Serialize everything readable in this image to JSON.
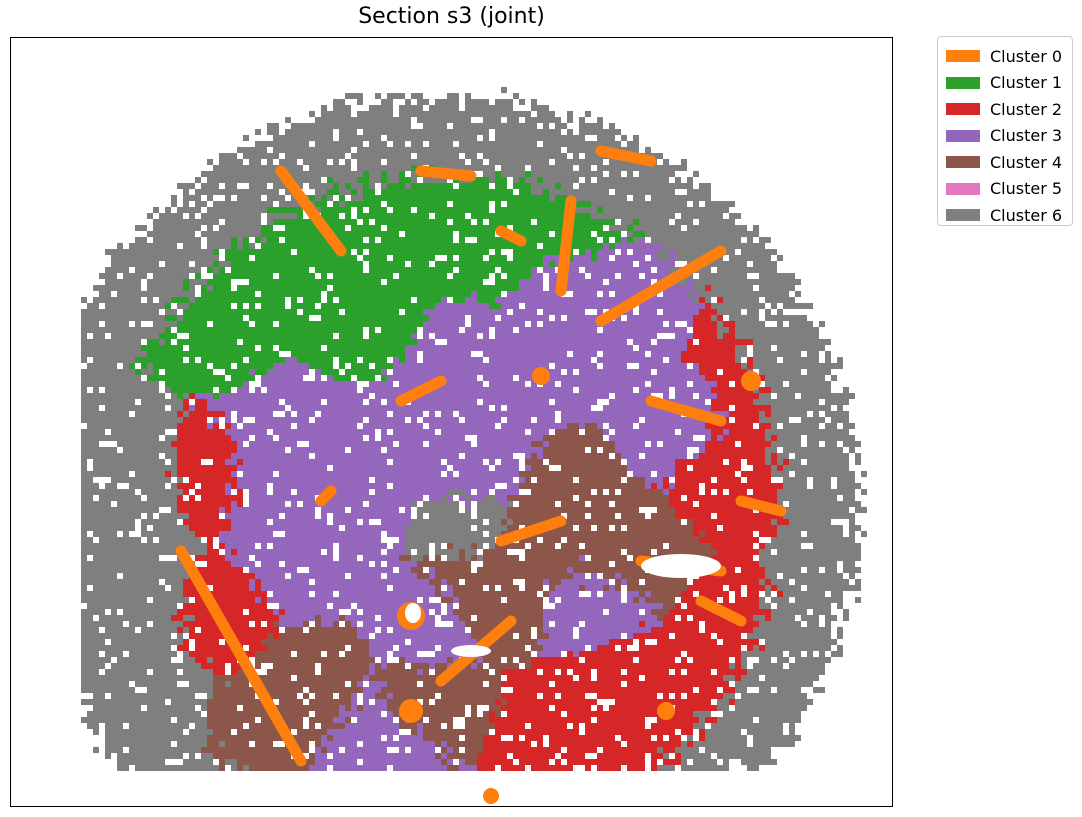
{
  "chart_data": {
    "type": "heatmap",
    "title": "Section s3 (joint)",
    "xlabel": "",
    "ylabel": "",
    "legend_position": "outside-top-right",
    "grid": false,
    "series": [
      {
        "name": "Cluster 0",
        "color": "#ff7f0e"
      },
      {
        "name": "Cluster 1",
        "color": "#2ca02c"
      },
      {
        "name": "Cluster 2",
        "color": "#d62728"
      },
      {
        "name": "Cluster 3",
        "color": "#9467bd"
      },
      {
        "name": "Cluster 4",
        "color": "#8c564b"
      },
      {
        "name": "Cluster 5",
        "color": "#e377c2"
      },
      {
        "name": "Cluster 6",
        "color": "#7f7f7f"
      }
    ]
  }
}
